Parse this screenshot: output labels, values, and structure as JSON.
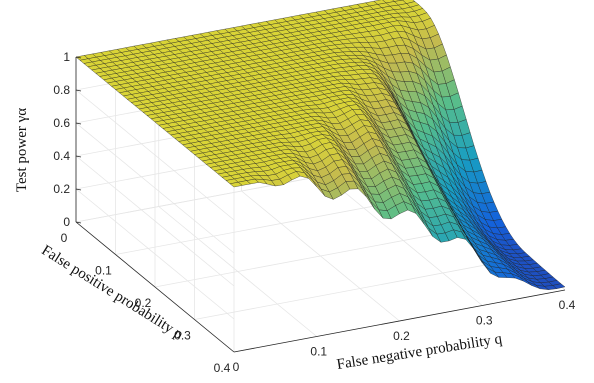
{
  "chart_data": {
    "type": "surface",
    "title": "",
    "xlabel": "False negative probability q",
    "ylabel": "False positive probability p",
    "zlabel": "Test power γα",
    "x_ticks": [
      "0",
      "0.1",
      "0.2",
      "0.3",
      "0.4"
    ],
    "y_ticks": [
      "0",
      "0.1",
      "0.2",
      "0.3",
      "0.4"
    ],
    "z_ticks": [
      "0",
      "0.2",
      "0.4",
      "0.6",
      "0.8",
      "1"
    ],
    "xlim": [
      0,
      0.4
    ],
    "ylim": [
      0,
      0.4
    ],
    "zlim": [
      0,
      1
    ],
    "grid": true,
    "colormap": "parula",
    "description_points": [
      {
        "q": 0.0,
        "p": 0.0,
        "power": 1.0
      },
      {
        "q": 0.4,
        "p": 0.0,
        "power": 1.0
      },
      {
        "q": 0.0,
        "p": 0.2,
        "power": 1.0
      },
      {
        "q": 0.0,
        "p": 0.4,
        "power": 0.3
      },
      {
        "q": 0.2,
        "p": 0.4,
        "power": 0.25
      },
      {
        "q": 0.3,
        "p": 0.4,
        "power": 0.15
      },
      {
        "q": 0.4,
        "p": 0.4,
        "power": 0.0
      }
    ]
  }
}
